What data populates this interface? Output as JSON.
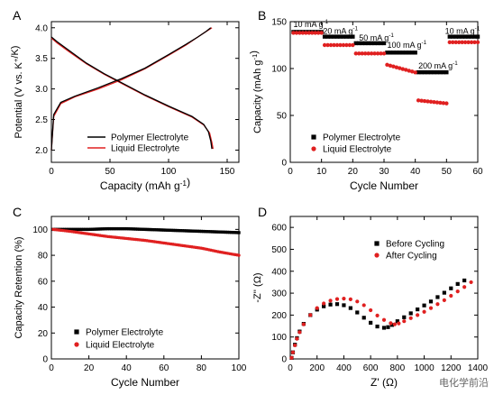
{
  "watermark": "电化学前沿",
  "chart_data": [
    {
      "panel": "A",
      "type": "line",
      "xlabel": "Capacity (mAh g-1)",
      "ylabel": "Potential (V vs. K+/K)",
      "xlim": [
        0,
        160
      ],
      "ylim": [
        1.8,
        4.1
      ],
      "xticks": [
        0,
        50,
        100,
        150
      ],
      "yticks": [
        2.0,
        2.5,
        3.0,
        3.5,
        4.0
      ],
      "legend_position": "bottom-center",
      "series": [
        {
          "name": "Polymer Electrolyte",
          "color": "#000000",
          "charge": {
            "x": [
              0,
              2,
              8,
              20,
              40,
              60,
              80,
              100,
              115,
              125,
              132,
              136
            ],
            "y": [
              2.0,
              2.58,
              2.78,
              2.88,
              3.02,
              3.17,
              3.34,
              3.56,
              3.73,
              3.85,
              3.94,
              4.0
            ]
          },
          "discharge": {
            "x": [
              0,
              5,
              15,
              30,
              45,
              60,
              80,
              100,
              120,
              130,
              134,
              136,
              137
            ],
            "y": [
              3.85,
              3.77,
              3.63,
              3.42,
              3.25,
              3.1,
              2.9,
              2.72,
              2.55,
              2.42,
              2.3,
              2.15,
              2.02
            ]
          }
        },
        {
          "name": "Liquid Electrolyte",
          "color": "#e02020",
          "charge": {
            "x": [
              0,
              2,
              8,
              20,
              40,
              60,
              80,
              100,
              115,
              125,
              132,
              137
            ],
            "y": [
              2.0,
              2.55,
              2.76,
              2.87,
              3.0,
              3.15,
              3.33,
              3.55,
              3.72,
              3.85,
              3.94,
              4.0
            ]
          },
          "discharge": {
            "x": [
              0,
              5,
              15,
              30,
              45,
              60,
              80,
              100,
              120,
              130,
              135,
              137,
              138
            ],
            "y": [
              3.83,
              3.75,
              3.61,
              3.41,
              3.24,
              3.09,
              2.89,
              2.71,
              2.54,
              2.41,
              2.28,
              2.12,
              2.02
            ]
          }
        }
      ]
    },
    {
      "panel": "B",
      "type": "scatter",
      "xlabel": "Cycle Number",
      "ylabel": "Capacity (mAh g-1)",
      "xlim": [
        0,
        60
      ],
      "ylim": [
        0,
        150
      ],
      "xticks": [
        0,
        10,
        20,
        30,
        40,
        50,
        60
      ],
      "yticks": [
        0,
        50,
        100,
        150
      ],
      "legend_position": "bottom-left",
      "annotations": [
        {
          "text": "10 mA g-1",
          "x": 1,
          "y": 144
        },
        {
          "text": "20 mA g-1",
          "x": 10.5,
          "y": 137
        },
        {
          "text": "50 mA g-1",
          "x": 22,
          "y": 130
        },
        {
          "text": "100 mA g-1",
          "x": 31,
          "y": 122
        },
        {
          "text": "200 mA g-1",
          "x": 41,
          "y": 100
        },
        {
          "text": "10 mA g-1",
          "x": 49.5,
          "y": 137
        }
      ],
      "series": [
        {
          "name": "Polymer Electrolyte",
          "color": "#000000",
          "marker": "square",
          "segments": [
            {
              "from": 1,
              "to": 10,
              "y": 139
            },
            {
              "from": 11,
              "to": 20,
              "y": 134
            },
            {
              "from": 21,
              "to": 30,
              "y": 127
            },
            {
              "from": 31,
              "to": 40,
              "y": 117
            },
            {
              "from": 41,
              "to": 50,
              "y": 96
            },
            {
              "from": 51,
              "to": 60,
              "y": 134
            }
          ]
        },
        {
          "name": "Liquid Electrolyte",
          "color": "#e02020",
          "marker": "circle",
          "segments": [
            {
              "from": 1,
              "to": 10,
              "y": 138
            },
            {
              "from": 11,
              "to": 20,
              "y": 125
            },
            {
              "from": 21,
              "to": 30,
              "y": 116
            },
            {
              "from": 31,
              "to": 40,
              "y": 104,
              "slope": -0.9
            },
            {
              "from": 41,
              "to": 50,
              "y": 66,
              "slope": -0.35
            },
            {
              "from": 51,
              "to": 60,
              "y": 128
            }
          ]
        }
      ]
    },
    {
      "panel": "C",
      "type": "scatter",
      "xlabel": "Cycle Number",
      "ylabel": "Capacity Retention (%)",
      "xlim": [
        0,
        100
      ],
      "ylim": [
        0,
        110
      ],
      "xticks": [
        0,
        20,
        40,
        60,
        80,
        100
      ],
      "yticks": [
        0,
        20,
        40,
        60,
        80,
        100
      ],
      "legend_position": "bottom-left",
      "series": [
        {
          "name": "Polymer Electrolyte",
          "color": "#000000",
          "marker": "square",
          "x": [
            1,
            10,
            20,
            30,
            40,
            50,
            60,
            70,
            80,
            90,
            100
          ],
          "y": [
            100,
            100,
            100,
            100.5,
            100.5,
            100,
            99.5,
            99,
            98.5,
            98,
            97.5
          ]
        },
        {
          "name": "Liquid Electrolyte",
          "color": "#e02020",
          "marker": "circle",
          "x": [
            1,
            10,
            20,
            30,
            40,
            50,
            60,
            70,
            80,
            90,
            100
          ],
          "y": [
            100,
            98.5,
            96.5,
            94.5,
            93,
            91.5,
            89.5,
            87.5,
            85.5,
            82.5,
            80
          ]
        }
      ]
    },
    {
      "panel": "D",
      "type": "scatter",
      "xlabel": "Z' (Ω)",
      "ylabel": "-Z'' (Ω)",
      "xlim": [
        0,
        1400
      ],
      "ylim": [
        0,
        650
      ],
      "xticks": [
        0,
        200,
        400,
        600,
        800,
        1000,
        1200,
        1400
      ],
      "yticks": [
        0,
        100,
        200,
        300,
        400,
        500,
        600
      ],
      "legend_position": "top-right",
      "series": [
        {
          "name": "Before Cycling",
          "color": "#000000",
          "marker": "square",
          "x": [
            10,
            20,
            35,
            50,
            70,
            100,
            150,
            200,
            250,
            300,
            350,
            400,
            450,
            500,
            550,
            600,
            650,
            700,
            730,
            760,
            800,
            850,
            900,
            950,
            1000,
            1050,
            1100,
            1150,
            1200,
            1250,
            1300
          ],
          "y": [
            5,
            30,
            65,
            95,
            125,
            160,
            200,
            225,
            240,
            248,
            250,
            245,
            232,
            212,
            188,
            165,
            148,
            142,
            145,
            155,
            172,
            190,
            208,
            226,
            244,
            262,
            282,
            302,
            322,
            342,
            358
          ]
        },
        {
          "name": "After Cycling",
          "color": "#e02020",
          "marker": "circle",
          "x": [
            10,
            20,
            35,
            50,
            70,
            100,
            150,
            200,
            250,
            300,
            350,
            400,
            450,
            500,
            550,
            600,
            650,
            700,
            750,
            780,
            810,
            850,
            900,
            950,
            1000,
            1050,
            1100,
            1150,
            1200,
            1250,
            1300,
            1350
          ],
          "y": [
            5,
            30,
            62,
            92,
            122,
            158,
            200,
            232,
            253,
            266,
            273,
            275,
            272,
            262,
            245,
            222,
            198,
            178,
            163,
            158,
            162,
            172,
            186,
            200,
            215,
            232,
            250,
            268,
            288,
            308,
            328,
            350
          ]
        }
      ]
    }
  ]
}
